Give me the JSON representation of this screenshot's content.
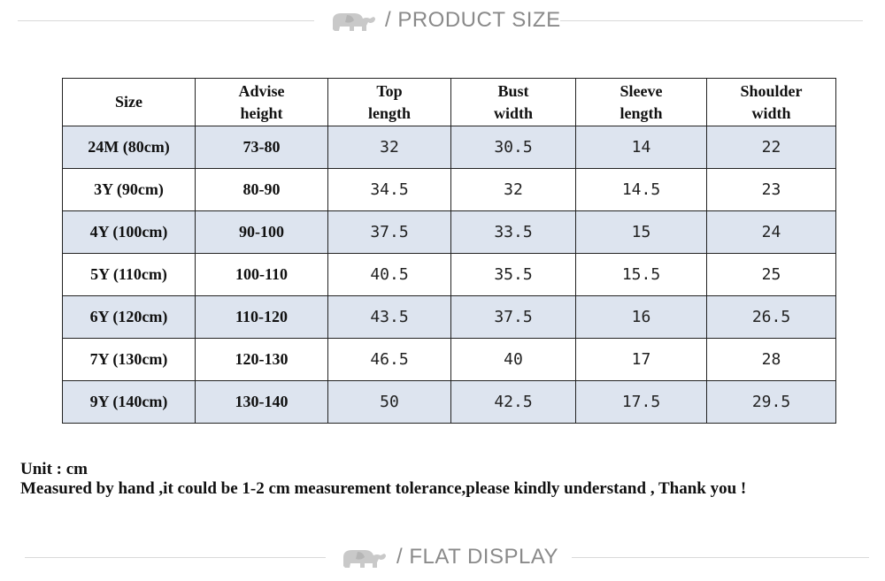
{
  "header_top": {
    "title": "/ PRODUCT SIZE",
    "icon": "elephant-logo-icon"
  },
  "header_bottom": {
    "title": "/ FLAT DISPLAY",
    "icon": "elephant-logo-icon"
  },
  "table": {
    "columns": [
      "Size",
      "Advise\nheight",
      "Top\nlength",
      "Bust\nwidth",
      "Sleeve\nlength",
      "Shoulder\nwidth"
    ],
    "rows": [
      [
        "24M (80cm)",
        "73-80",
        "32",
        "30.5",
        "14",
        "22"
      ],
      [
        "3Y (90cm)",
        "80-90",
        "34.5",
        "32",
        "14.5",
        "23"
      ],
      [
        "4Y (100cm)",
        "90-100",
        "37.5",
        "33.5",
        "15",
        "24"
      ],
      [
        "5Y (110cm)",
        "100-110",
        "40.5",
        "35.5",
        "15.5",
        "25"
      ],
      [
        "6Y (120cm)",
        "110-120",
        "43.5",
        "37.5",
        "16",
        "26.5"
      ],
      [
        "7Y (130cm)",
        "120-130",
        "46.5",
        "40",
        "17",
        "28"
      ],
      [
        "9Y (140cm)",
        "130-140",
        "50",
        "42.5",
        "17.5",
        "29.5"
      ]
    ],
    "shaded_color": "#dde4ef"
  },
  "notes": {
    "unit": "Unit : cm",
    "tolerance": "Measured by hand ,it could be 1-2 cm measurement tolerance,please kindly understand , Thank you !"
  }
}
